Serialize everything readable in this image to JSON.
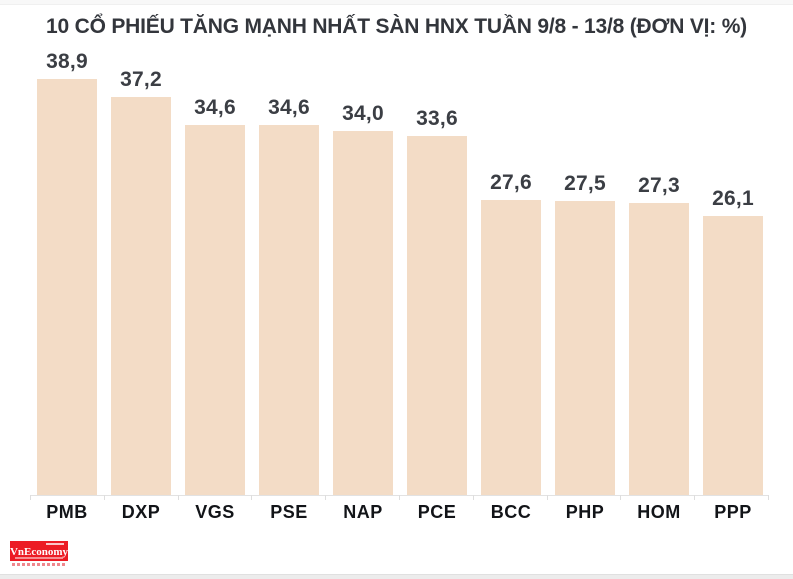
{
  "page": {
    "background": "#ffffff",
    "top_strip_color": "#f8f8f8",
    "bottom_strip_color": "#ececec"
  },
  "brand": {
    "logo_text": "VnEconomy",
    "logo_bg": "#ec1c24",
    "logo_text_color": "#ffffff"
  },
  "chart_data": {
    "type": "bar",
    "title": "10 CỔ PHIẾU TĂNG MẠNH NHẤT SÀN HNX TUẦN 9/8 - 13/8 (ĐƠN VỊ: %)",
    "unit": "%",
    "categories": [
      "PMB",
      "DXP",
      "VGS",
      "PSE",
      "NAP",
      "PCE",
      "BCC",
      "PHP",
      "HOM",
      "PPP"
    ],
    "values": [
      38.9,
      37.2,
      34.6,
      34.6,
      34.0,
      33.6,
      27.6,
      27.5,
      27.3,
      26.1
    ],
    "value_labels": [
      "38,9",
      "37,2",
      "34,6",
      "34,6",
      "34,0",
      "33,6",
      "27,6",
      "27,5",
      "27,3",
      "26,1"
    ],
    "decimal_separator": ",",
    "bar_color": "#f3dcc6",
    "value_label_color": "#3b3e44",
    "category_label_color": "#121418",
    "axis_color": "#e2e2e2",
    "ylim": [
      0,
      40
    ],
    "grid": false,
    "legend": false
  }
}
